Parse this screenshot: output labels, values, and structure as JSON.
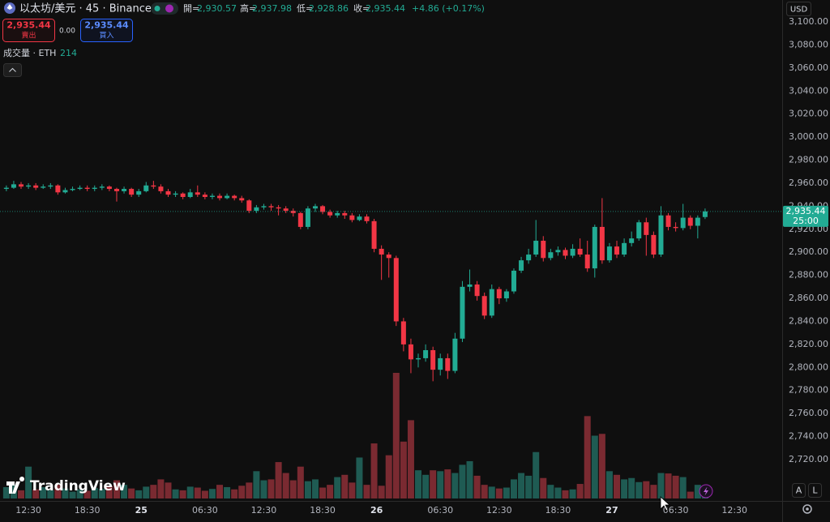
{
  "ui": {
    "symbol": "以太坊/美元 · 45 · Binance",
    "labels": {
      "open": "開=",
      "high": "高=",
      "low": "低=",
      "close": "收="
    },
    "sell": "賣出",
    "buy": "買入",
    "spread": "0.00",
    "volume_title": "成交量 · ETH",
    "currency": "USD",
    "countdown": "25:00",
    "auto": "A",
    "log": "L",
    "brand": "TradingView"
  },
  "chart_data": {
    "type": "candlestick",
    "x": [
      10.25,
      11,
      11.75,
      12.5,
      13.25,
      14,
      14.75,
      15.5,
      16.25,
      17,
      17.75,
      18.5,
      19.25,
      20,
      20.75,
      21.5,
      22.25,
      23,
      23.75,
      24.5,
      25.25,
      26,
      26.75,
      27.5,
      28.25,
      29,
      29.75,
      30.5,
      31.25,
      32,
      32.75,
      33.5,
      34.25,
      35,
      35.75,
      36.5,
      37.25,
      38,
      38.75,
      39.5,
      40.25,
      41,
      41.75,
      42.5,
      43.25,
      44,
      44.75,
      45.5,
      46.25,
      47,
      47.75,
      48.5,
      49.25,
      50,
      50.75,
      51.5,
      52.25,
      53,
      53.75,
      54.5,
      55.25,
      56,
      56.75,
      57.5,
      58.25,
      59,
      59.75,
      60.5,
      61.25,
      62,
      62.75,
      63.5,
      64.25,
      65,
      65.75,
      66.5,
      67.25,
      68,
      68.75,
      69.5,
      70.25,
      71,
      71.75,
      72.5,
      73.25,
      74,
      74.75,
      75.5,
      76.25,
      77,
      77.75,
      78.5,
      79.25,
      80,
      80.75,
      81.5
    ],
    "open": [
      2955,
      2956,
      2959,
      2957,
      2958,
      2956,
      2957,
      2958,
      2952,
      2954,
      2955,
      2956,
      2955,
      2956,
      2957,
      2955,
      2953,
      2955,
      2950,
      2953,
      2958,
      2957,
      2953,
      2950,
      2951,
      2948,
      2952,
      2950,
      2948,
      2949,
      2947,
      2949,
      2947,
      2945,
      2936,
      2939,
      2940,
      2939,
      2938,
      2936,
      2934,
      2922,
      2938,
      2940,
      2935,
      2932,
      2934,
      2932,
      2928,
      2931,
      2927,
      2903,
      2898,
      2895,
      2840,
      2820,
      2807,
      2808,
      2815,
      2798,
      2808,
      2797,
      2825,
      2870,
      2872,
      2862,
      2845,
      2868,
      2860,
      2866,
      2884,
      2893,
      2898,
      2910,
      2895,
      2900,
      2902,
      2897,
      2903,
      2898,
      2886,
      2922,
      2893,
      2905,
      2898,
      2908,
      2912,
      2926,
      2915,
      2898,
      2932,
      2922,
      2921,
      2930,
      2923,
      2930.57
    ],
    "high": [
      2958,
      2962,
      2961,
      2960,
      2960,
      2959,
      2960,
      2959,
      2956,
      2957,
      2958,
      2958,
      2958,
      2959,
      2958,
      2956,
      2957,
      2956,
      2955,
      2961,
      2962,
      2959,
      2955,
      2953,
      2952,
      2955,
      2958,
      2952,
      2951,
      2951,
      2951,
      2950,
      2949,
      2946,
      2941,
      2942,
      2942,
      2941,
      2940,
      2938,
      2935,
      2940,
      2942,
      2941,
      2937,
      2936,
      2936,
      2934,
      2933,
      2933,
      2929,
      2906,
      2900,
      2897,
      2843,
      2825,
      2812,
      2820,
      2818,
      2812,
      2812,
      2830,
      2875,
      2885,
      2875,
      2865,
      2872,
      2870,
      2868,
      2886,
      2896,
      2903,
      2928,
      2914,
      2903,
      2905,
      2904,
      2907,
      2912,
      2910,
      2924,
      2947,
      2908,
      2910,
      2912,
      2918,
      2928,
      2930,
      2918,
      2940,
      2934,
      2926,
      2942,
      2932,
      2932,
      2937.98
    ],
    "low": [
      2953,
      2955,
      2955,
      2955,
      2954,
      2955,
      2955,
      2950,
      2951,
      2953,
      2954,
      2953,
      2953,
      2954,
      2953,
      2944,
      2951,
      2948,
      2948,
      2952,
      2955,
      2951,
      2948,
      2948,
      2946,
      2947,
      2948,
      2946,
      2946,
      2945,
      2946,
      2945,
      2943,
      2934,
      2934,
      2937,
      2936,
      2932,
      2934,
      2931,
      2920,
      2920,
      2935,
      2933,
      2930,
      2930,
      2929,
      2926,
      2927,
      2925,
      2900,
      2876,
      2878,
      2836,
      2814,
      2795,
      2800,
      2805,
      2788,
      2793,
      2790,
      2795,
      2822,
      2866,
      2858,
      2842,
      2843,
      2855,
      2857,
      2864,
      2882,
      2890,
      2896,
      2892,
      2893,
      2897,
      2894,
      2895,
      2896,
      2883,
      2878,
      2890,
      2891,
      2895,
      2896,
      2905,
      2910,
      2897,
      2895,
      2896,
      2919,
      2918,
      2919,
      2920,
      2912,
      2928.86
    ],
    "close": [
      2956,
      2959,
      2957,
      2958,
      2956,
      2957,
      2958,
      2952,
      2954,
      2955,
      2956,
      2955,
      2956,
      2957,
      2955,
      2953,
      2955,
      2950,
      2953,
      2958,
      2957,
      2953,
      2950,
      2951,
      2948,
      2952,
      2950,
      2948,
      2949,
      2947,
      2949,
      2947,
      2945,
      2936,
      2939,
      2940,
      2939,
      2938,
      2936,
      2934,
      2922,
      2938,
      2940,
      2935,
      2932,
      2934,
      2932,
      2928,
      2931,
      2927,
      2903,
      2898,
      2895,
      2840,
      2820,
      2807,
      2808,
      2815,
      2798,
      2808,
      2797,
      2825,
      2870,
      2872,
      2862,
      2845,
      2868,
      2860,
      2866,
      2884,
      2893,
      2898,
      2910,
      2895,
      2900,
      2902,
      2897,
      2903,
      2898,
      2886,
      2922,
      2893,
      2905,
      2898,
      2908,
      2912,
      2926,
      2915,
      2898,
      2932,
      2922,
      2921,
      2930,
      2923,
      2930,
      2935.44
    ],
    "volume": [
      250,
      300,
      180,
      700,
      200,
      250,
      180,
      300,
      220,
      150,
      200,
      170,
      230,
      210,
      280,
      400,
      300,
      220,
      180,
      260,
      300,
      420,
      350,
      200,
      180,
      260,
      240,
      170,
      210,
      300,
      250,
      200,
      280,
      350,
      600,
      400,
      420,
      800,
      560,
      400,
      700,
      380,
      420,
      240,
      300,
      470,
      520,
      350,
      900,
      300,
      1210,
      280,
      950,
      2760,
      1250,
      1720,
      620,
      520,
      620,
      600,
      640,
      560,
      740,
      820,
      500,
      300,
      260,
      220,
      240,
      420,
      560,
      500,
      1020,
      450,
      300,
      240,
      180,
      200,
      320,
      1810,
      1380,
      1420,
      600,
      520,
      420,
      450,
      360,
      380,
      300,
      560,
      550,
      500,
      470,
      150,
      300,
      214
    ],
    "last_labels": {
      "open": "2,930.57",
      "high": "2,937.98",
      "low": "2,928.86",
      "close": "2,935.44"
    },
    "change_label": "+4.86 (+0.17%)",
    "colors": {
      "up": "#22ab94",
      "down": "#f23645",
      "volume_up": "#1f5b53",
      "volume_down": "#7a2a31"
    },
    "xlim": [
      9.6,
      89.36
    ],
    "ylim": [
      2684.1,
      3119
    ],
    "xticks": [
      {
        "value": 12.5,
        "label": "12:30"
      },
      {
        "value": 18.5,
        "label": "18:30"
      },
      {
        "value": 24,
        "label": "25"
      },
      {
        "value": 30.5,
        "label": "06:30"
      },
      {
        "value": 36.5,
        "label": "12:30"
      },
      {
        "value": 42.5,
        "label": "18:30"
      },
      {
        "value": 48,
        "label": "26"
      },
      {
        "value": 54.5,
        "label": "06:30"
      },
      {
        "value": 60.5,
        "label": "12:30"
      },
      {
        "value": 66.5,
        "label": "18:30"
      },
      {
        "value": 72,
        "label": "27"
      },
      {
        "value": 78.5,
        "label": "06:30"
      },
      {
        "value": 84.5,
        "label": "12:30"
      }
    ],
    "yticks": [
      {
        "value": 2720,
        "label": "2,720.00"
      },
      {
        "value": 2740,
        "label": "2,740.00"
      },
      {
        "value": 2760,
        "label": "2,760.00"
      },
      {
        "value": 2780,
        "label": "2,780.00"
      },
      {
        "value": 2800,
        "label": "2,800.00"
      },
      {
        "value": 2820,
        "label": "2,820.00"
      },
      {
        "value": 2840,
        "label": "2,840.00"
      },
      {
        "value": 2860,
        "label": "2,860.00"
      },
      {
        "value": 2880,
        "label": "2,880.00"
      },
      {
        "value": 2900,
        "label": "2,900.00"
      },
      {
        "value": 2920,
        "label": "2,920.00"
      },
      {
        "value": 2940,
        "label": "2,940.00"
      },
      {
        "value": 2960,
        "label": "2,960.00"
      },
      {
        "value": 2980,
        "label": "2,980.00"
      },
      {
        "value": 3000,
        "label": "3,000.00"
      },
      {
        "value": 3020,
        "label": "3,020.00"
      },
      {
        "value": 3040,
        "label": "3,040.00"
      },
      {
        "value": 3060,
        "label": "3,060.00"
      },
      {
        "value": 3080,
        "label": "3,080.00"
      },
      {
        "value": 3100,
        "label": "3,100.00"
      }
    ],
    "grid": false
  }
}
